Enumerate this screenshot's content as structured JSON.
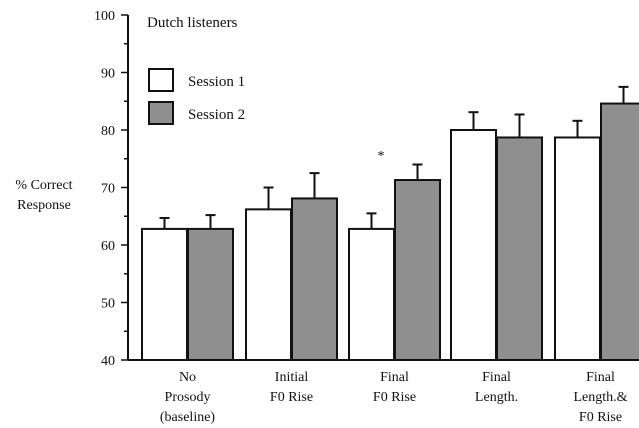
{
  "chart_data": {
    "type": "bar",
    "title": "Dutch listeners",
    "ylabel_lines": [
      "% Correct",
      "Response"
    ],
    "ylim": [
      40,
      100
    ],
    "yticks": [
      40,
      50,
      60,
      70,
      80,
      90,
      100
    ],
    "categories": [
      [
        "No",
        "Prosody",
        "(baseline)"
      ],
      [
        "Initial",
        "F0 Rise"
      ],
      [
        "Final",
        "F0 Rise"
      ],
      [
        "Final",
        "Length."
      ],
      [
        "Final",
        "Length.&",
        "F0 Rise"
      ]
    ],
    "series": [
      {
        "name": "Session 1",
        "color": "#ffffff",
        "values": [
          62.8,
          66.2,
          62.8,
          80.0,
          78.7
        ],
        "errors": [
          1.9,
          3.8,
          2.7,
          3.1,
          2.9
        ]
      },
      {
        "name": "Session 2",
        "color": "#8f8f8f",
        "values": [
          62.8,
          68.1,
          71.3,
          78.7,
          84.6
        ],
        "errors": [
          2.4,
          4.4,
          2.7,
          4.0,
          2.9
        ]
      }
    ],
    "annotations": [
      {
        "text": "*",
        "category_index": 2
      }
    ],
    "legend_position": "top-left",
    "grid": false
  }
}
